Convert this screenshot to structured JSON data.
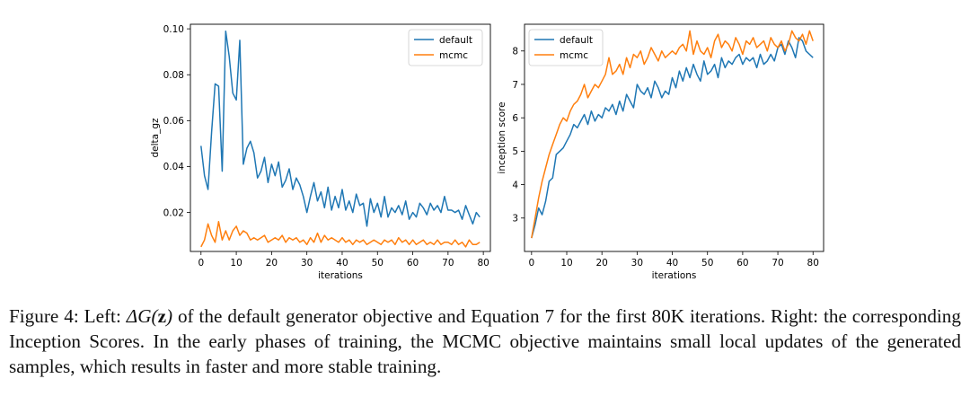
{
  "figure": {
    "colors": {
      "default": "#1f77b4",
      "mcmc": "#ff7f0e",
      "axis": "#000000"
    },
    "legend": {
      "default": "default",
      "mcmc": "mcmc"
    }
  },
  "chart_data": [
    {
      "type": "line",
      "title": "",
      "xlabel": "iterations",
      "ylabel": "delta_gz",
      "xlim": [
        -3,
        82
      ],
      "ylim": [
        0.003,
        0.102
      ],
      "xticks": [
        0,
        10,
        20,
        30,
        40,
        50,
        60,
        70,
        80
      ],
      "yticks": [
        0.02,
        0.04,
        0.06,
        0.08,
        0.1
      ],
      "ytick_labels": [
        "0.02",
        "0.04",
        "0.06",
        "0.08",
        "0.10"
      ],
      "legend_position": "top-right",
      "series": [
        {
          "name": "default",
          "x": [
            0,
            1,
            2,
            3,
            4,
            5,
            6,
            7,
            8,
            9,
            10,
            11,
            12,
            13,
            14,
            15,
            16,
            17,
            18,
            19,
            20,
            21,
            22,
            23,
            24,
            25,
            26,
            27,
            28,
            29,
            30,
            31,
            32,
            33,
            34,
            35,
            36,
            37,
            38,
            39,
            40,
            41,
            42,
            43,
            44,
            45,
            46,
            47,
            48,
            49,
            50,
            51,
            52,
            53,
            54,
            55,
            56,
            57,
            58,
            59,
            60,
            61,
            62,
            63,
            64,
            65,
            66,
            67,
            68,
            69,
            70,
            71,
            72,
            73,
            74,
            75,
            76,
            77,
            78,
            79
          ],
          "values": [
            0.049,
            0.036,
            0.03,
            0.055,
            0.076,
            0.075,
            0.038,
            0.099,
            0.088,
            0.072,
            0.069,
            0.095,
            0.041,
            0.048,
            0.051,
            0.046,
            0.035,
            0.038,
            0.044,
            0.033,
            0.041,
            0.036,
            0.042,
            0.031,
            0.034,
            0.039,
            0.03,
            0.035,
            0.032,
            0.027,
            0.02,
            0.027,
            0.033,
            0.025,
            0.029,
            0.022,
            0.031,
            0.021,
            0.027,
            0.022,
            0.03,
            0.021,
            0.025,
            0.02,
            0.028,
            0.023,
            0.024,
            0.014,
            0.026,
            0.02,
            0.024,
            0.018,
            0.027,
            0.018,
            0.022,
            0.02,
            0.023,
            0.019,
            0.025,
            0.017,
            0.02,
            0.018,
            0.024,
            0.022,
            0.019,
            0.024,
            0.021,
            0.023,
            0.02,
            0.027,
            0.021,
            0.021,
            0.02,
            0.021,
            0.017,
            0.023,
            0.019,
            0.015,
            0.02,
            0.018
          ]
        },
        {
          "name": "mcmc",
          "x": [
            0,
            1,
            2,
            3,
            4,
            5,
            6,
            7,
            8,
            9,
            10,
            11,
            12,
            13,
            14,
            15,
            16,
            17,
            18,
            19,
            20,
            21,
            22,
            23,
            24,
            25,
            26,
            27,
            28,
            29,
            30,
            31,
            32,
            33,
            34,
            35,
            36,
            37,
            38,
            39,
            40,
            41,
            42,
            43,
            44,
            45,
            46,
            47,
            48,
            49,
            50,
            51,
            52,
            53,
            54,
            55,
            56,
            57,
            58,
            59,
            60,
            61,
            62,
            63,
            64,
            65,
            66,
            67,
            68,
            69,
            70,
            71,
            72,
            73,
            74,
            75,
            76,
            77,
            78,
            79
          ],
          "values": [
            0.005,
            0.008,
            0.015,
            0.01,
            0.007,
            0.016,
            0.008,
            0.012,
            0.008,
            0.012,
            0.014,
            0.01,
            0.012,
            0.011,
            0.008,
            0.009,
            0.008,
            0.009,
            0.01,
            0.007,
            0.008,
            0.009,
            0.008,
            0.01,
            0.007,
            0.009,
            0.008,
            0.009,
            0.007,
            0.008,
            0.006,
            0.009,
            0.007,
            0.011,
            0.007,
            0.01,
            0.008,
            0.009,
            0.008,
            0.007,
            0.009,
            0.007,
            0.008,
            0.006,
            0.008,
            0.007,
            0.008,
            0.006,
            0.007,
            0.008,
            0.007,
            0.006,
            0.008,
            0.007,
            0.008,
            0.006,
            0.009,
            0.007,
            0.008,
            0.006,
            0.008,
            0.006,
            0.007,
            0.008,
            0.006,
            0.007,
            0.006,
            0.008,
            0.006,
            0.007,
            0.007,
            0.006,
            0.008,
            0.006,
            0.007,
            0.005,
            0.008,
            0.006,
            0.006,
            0.007
          ]
        }
      ]
    },
    {
      "type": "line",
      "title": "",
      "xlabel": "iterations",
      "ylabel": "inception score",
      "xlim": [
        -2,
        83
      ],
      "ylim": [
        2.0,
        8.8
      ],
      "xticks": [
        0,
        10,
        20,
        30,
        40,
        50,
        60,
        70,
        80
      ],
      "yticks": [
        3,
        4,
        5,
        6,
        7,
        8
      ],
      "ytick_labels": [
        "3",
        "4",
        "5",
        "6",
        "7",
        "8"
      ],
      "legend_position": "top-left",
      "series": [
        {
          "name": "default",
          "x": [
            0,
            1,
            2,
            3,
            4,
            5,
            6,
            7,
            8,
            9,
            10,
            11,
            12,
            13,
            14,
            15,
            16,
            17,
            18,
            19,
            20,
            21,
            22,
            23,
            24,
            25,
            26,
            27,
            28,
            29,
            30,
            31,
            32,
            33,
            34,
            35,
            36,
            37,
            38,
            39,
            40,
            41,
            42,
            43,
            44,
            45,
            46,
            47,
            48,
            49,
            50,
            51,
            52,
            53,
            54,
            55,
            56,
            57,
            58,
            59,
            60,
            61,
            62,
            63,
            64,
            65,
            66,
            67,
            68,
            69,
            70,
            71,
            72,
            73,
            74,
            75,
            76,
            77,
            78,
            79,
            80
          ],
          "values": [
            2.4,
            2.8,
            3.3,
            3.1,
            3.5,
            4.1,
            4.2,
            4.9,
            5.0,
            5.1,
            5.3,
            5.5,
            5.8,
            5.7,
            5.9,
            6.1,
            5.8,
            6.2,
            5.9,
            6.1,
            6.0,
            6.3,
            6.2,
            6.4,
            6.1,
            6.5,
            6.2,
            6.7,
            6.5,
            6.3,
            7.0,
            6.8,
            6.7,
            6.9,
            6.6,
            7.1,
            6.9,
            6.6,
            6.8,
            6.7,
            7.2,
            6.9,
            7.4,
            7.1,
            7.5,
            7.2,
            7.6,
            7.3,
            7.1,
            7.7,
            7.3,
            7.4,
            7.6,
            7.2,
            7.8,
            7.5,
            7.7,
            7.6,
            7.8,
            7.9,
            7.6,
            7.8,
            7.7,
            7.8,
            7.5,
            7.9,
            7.6,
            7.7,
            7.9,
            7.7,
            8.1,
            8.2,
            7.9,
            8.3,
            8.1,
            7.8,
            8.4,
            8.3,
            8.0,
            7.9,
            7.8
          ]
        },
        {
          "name": "mcmc",
          "x": [
            0,
            1,
            2,
            3,
            4,
            5,
            6,
            7,
            8,
            9,
            10,
            11,
            12,
            13,
            14,
            15,
            16,
            17,
            18,
            19,
            20,
            21,
            22,
            23,
            24,
            25,
            26,
            27,
            28,
            29,
            30,
            31,
            32,
            33,
            34,
            35,
            36,
            37,
            38,
            39,
            40,
            41,
            42,
            43,
            44,
            45,
            46,
            47,
            48,
            49,
            50,
            51,
            52,
            53,
            54,
            55,
            56,
            57,
            58,
            59,
            60,
            61,
            62,
            63,
            64,
            65,
            66,
            67,
            68,
            69,
            70,
            71,
            72,
            73,
            74,
            75,
            76,
            77,
            78,
            79,
            80
          ],
          "values": [
            2.4,
            3.0,
            3.6,
            4.1,
            4.5,
            4.9,
            5.2,
            5.5,
            5.8,
            6.0,
            5.9,
            6.2,
            6.4,
            6.5,
            6.7,
            7.0,
            6.6,
            6.8,
            7.0,
            6.9,
            7.1,
            7.3,
            7.8,
            7.3,
            7.4,
            7.6,
            7.3,
            7.8,
            7.5,
            7.9,
            7.8,
            8.0,
            7.6,
            7.8,
            8.1,
            7.9,
            7.7,
            8.0,
            7.8,
            7.9,
            8.0,
            7.9,
            8.1,
            8.2,
            8.0,
            8.6,
            7.9,
            8.3,
            8.0,
            7.9,
            8.1,
            7.8,
            8.3,
            8.5,
            8.1,
            8.3,
            8.2,
            8.0,
            8.4,
            8.2,
            7.9,
            8.3,
            8.2,
            8.4,
            8.1,
            8.2,
            8.3,
            8.0,
            8.4,
            8.2,
            8.1,
            8.3,
            8.0,
            8.2,
            8.6,
            8.4,
            8.3,
            8.5,
            8.2,
            8.6,
            8.3
          ]
        }
      ]
    }
  ],
  "caption": {
    "label": "Figure 4: Left: ",
    "math_delta": "ΔG(",
    "math_z": "z",
    "math_close": ")",
    "text": " of the default generator objective and Equation 7 for the first 80K iterations. Right: the corresponding Inception Scores. In the early phases of training, the MCMC objective maintains small local updates of the generated samples, which results in faster and more stable training."
  }
}
